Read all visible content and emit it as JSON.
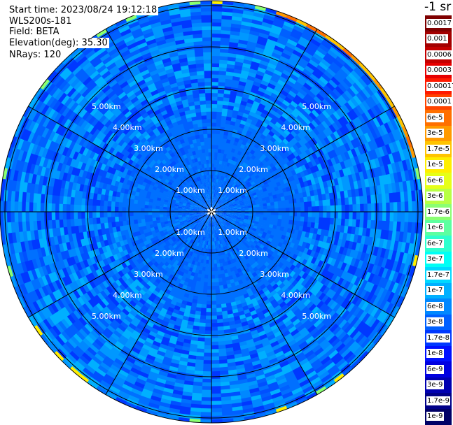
{
  "header": {
    "start_time": "Start time: 2023/08/24 19:12:18",
    "instrument": "WLS200s-181",
    "field": "Field: BETA",
    "elevation": "Elevation(deg): 35.30",
    "nrays": "NRays: 120"
  },
  "colorbar": {
    "unit": "-1 sr",
    "levels": [
      {
        "label": "0.0017",
        "color": "#7f0000"
      },
      {
        "label": "0.001",
        "color": "#a30000"
      },
      {
        "label": "0.0006",
        "color": "#c40000"
      },
      {
        "label": "0.0003",
        "color": "#e60000"
      },
      {
        "label": "0.00017",
        "color": "#ff1a00"
      },
      {
        "label": "0.0001",
        "color": "#ff4400"
      },
      {
        "label": "6e-5",
        "color": "#ff7000"
      },
      {
        "label": "3e-5",
        "color": "#ff9a00"
      },
      {
        "label": "1.7e-5",
        "color": "#ffc400"
      },
      {
        "label": "1e-5",
        "color": "#ffee00"
      },
      {
        "label": "6e-6",
        "color": "#e6ff18"
      },
      {
        "label": "3e-6",
        "color": "#b8ff45"
      },
      {
        "label": "1.7e-6",
        "color": "#8aff72"
      },
      {
        "label": "1e-6",
        "color": "#5cffa0"
      },
      {
        "label": "6e-7",
        "color": "#2effce"
      },
      {
        "label": "3e-7",
        "color": "#00fff5"
      },
      {
        "label": "1.7e-7",
        "color": "#00d8ff"
      },
      {
        "label": "1e-7",
        "color": "#00b0ff"
      },
      {
        "label": "6e-8",
        "color": "#0088ff"
      },
      {
        "label": "3e-8",
        "color": "#0060ff"
      },
      {
        "label": "1.7e-8",
        "color": "#0038ff"
      },
      {
        "label": "1e-8",
        "color": "#0010ff"
      },
      {
        "label": "6e-9",
        "color": "#0000e0"
      },
      {
        "label": "3e-9",
        "color": "#0000b0"
      },
      {
        "label": "1.7e-9",
        "color": "#000088"
      },
      {
        "label": "1e-9",
        "color": "#000066"
      }
    ]
  },
  "chart_data": {
    "type": "heatmap",
    "projection": "polar (PPI scan)",
    "field": "BETA",
    "elevation_deg": 35.3,
    "nrays": 120,
    "range_rings_km": [
      1,
      2,
      3,
      4,
      5
    ],
    "range_ring_labels": [
      "1.00km",
      "2.00km",
      "3.00km",
      "4.00km",
      "5.00km"
    ],
    "max_range_km": 5.1,
    "spokes_deg": [
      0,
      30,
      60,
      90,
      120,
      150,
      180,
      210,
      240,
      270,
      300,
      330
    ],
    "typical_value": "3e-8 to 6e-8 (blue field throughout)",
    "edge_enhancement": "orange/yellow arc along outer rim, north-east sector, values up to ~3e-5"
  }
}
